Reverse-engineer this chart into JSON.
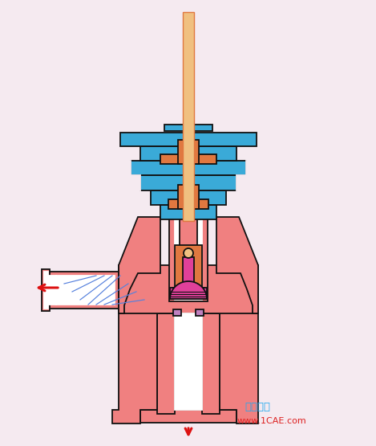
{
  "bg_color": "#f5eaf0",
  "pink": "#F08080",
  "pink_light": "#F5AAAA",
  "blue": "#3AAAD8",
  "orange_dark": "#E07840",
  "orange_light": "#F0C080",
  "magenta": "#E0409A",
  "white": "#FFFFFF",
  "hatch_c": "#5580DD",
  "outline": "#111111",
  "arrow_c": "#DD1111",
  "text_blue": "#22AAEE",
  "text_red": "#DD2020",
  "wm1": "仿真在线",
  "wm2": "www.1CAE.com"
}
